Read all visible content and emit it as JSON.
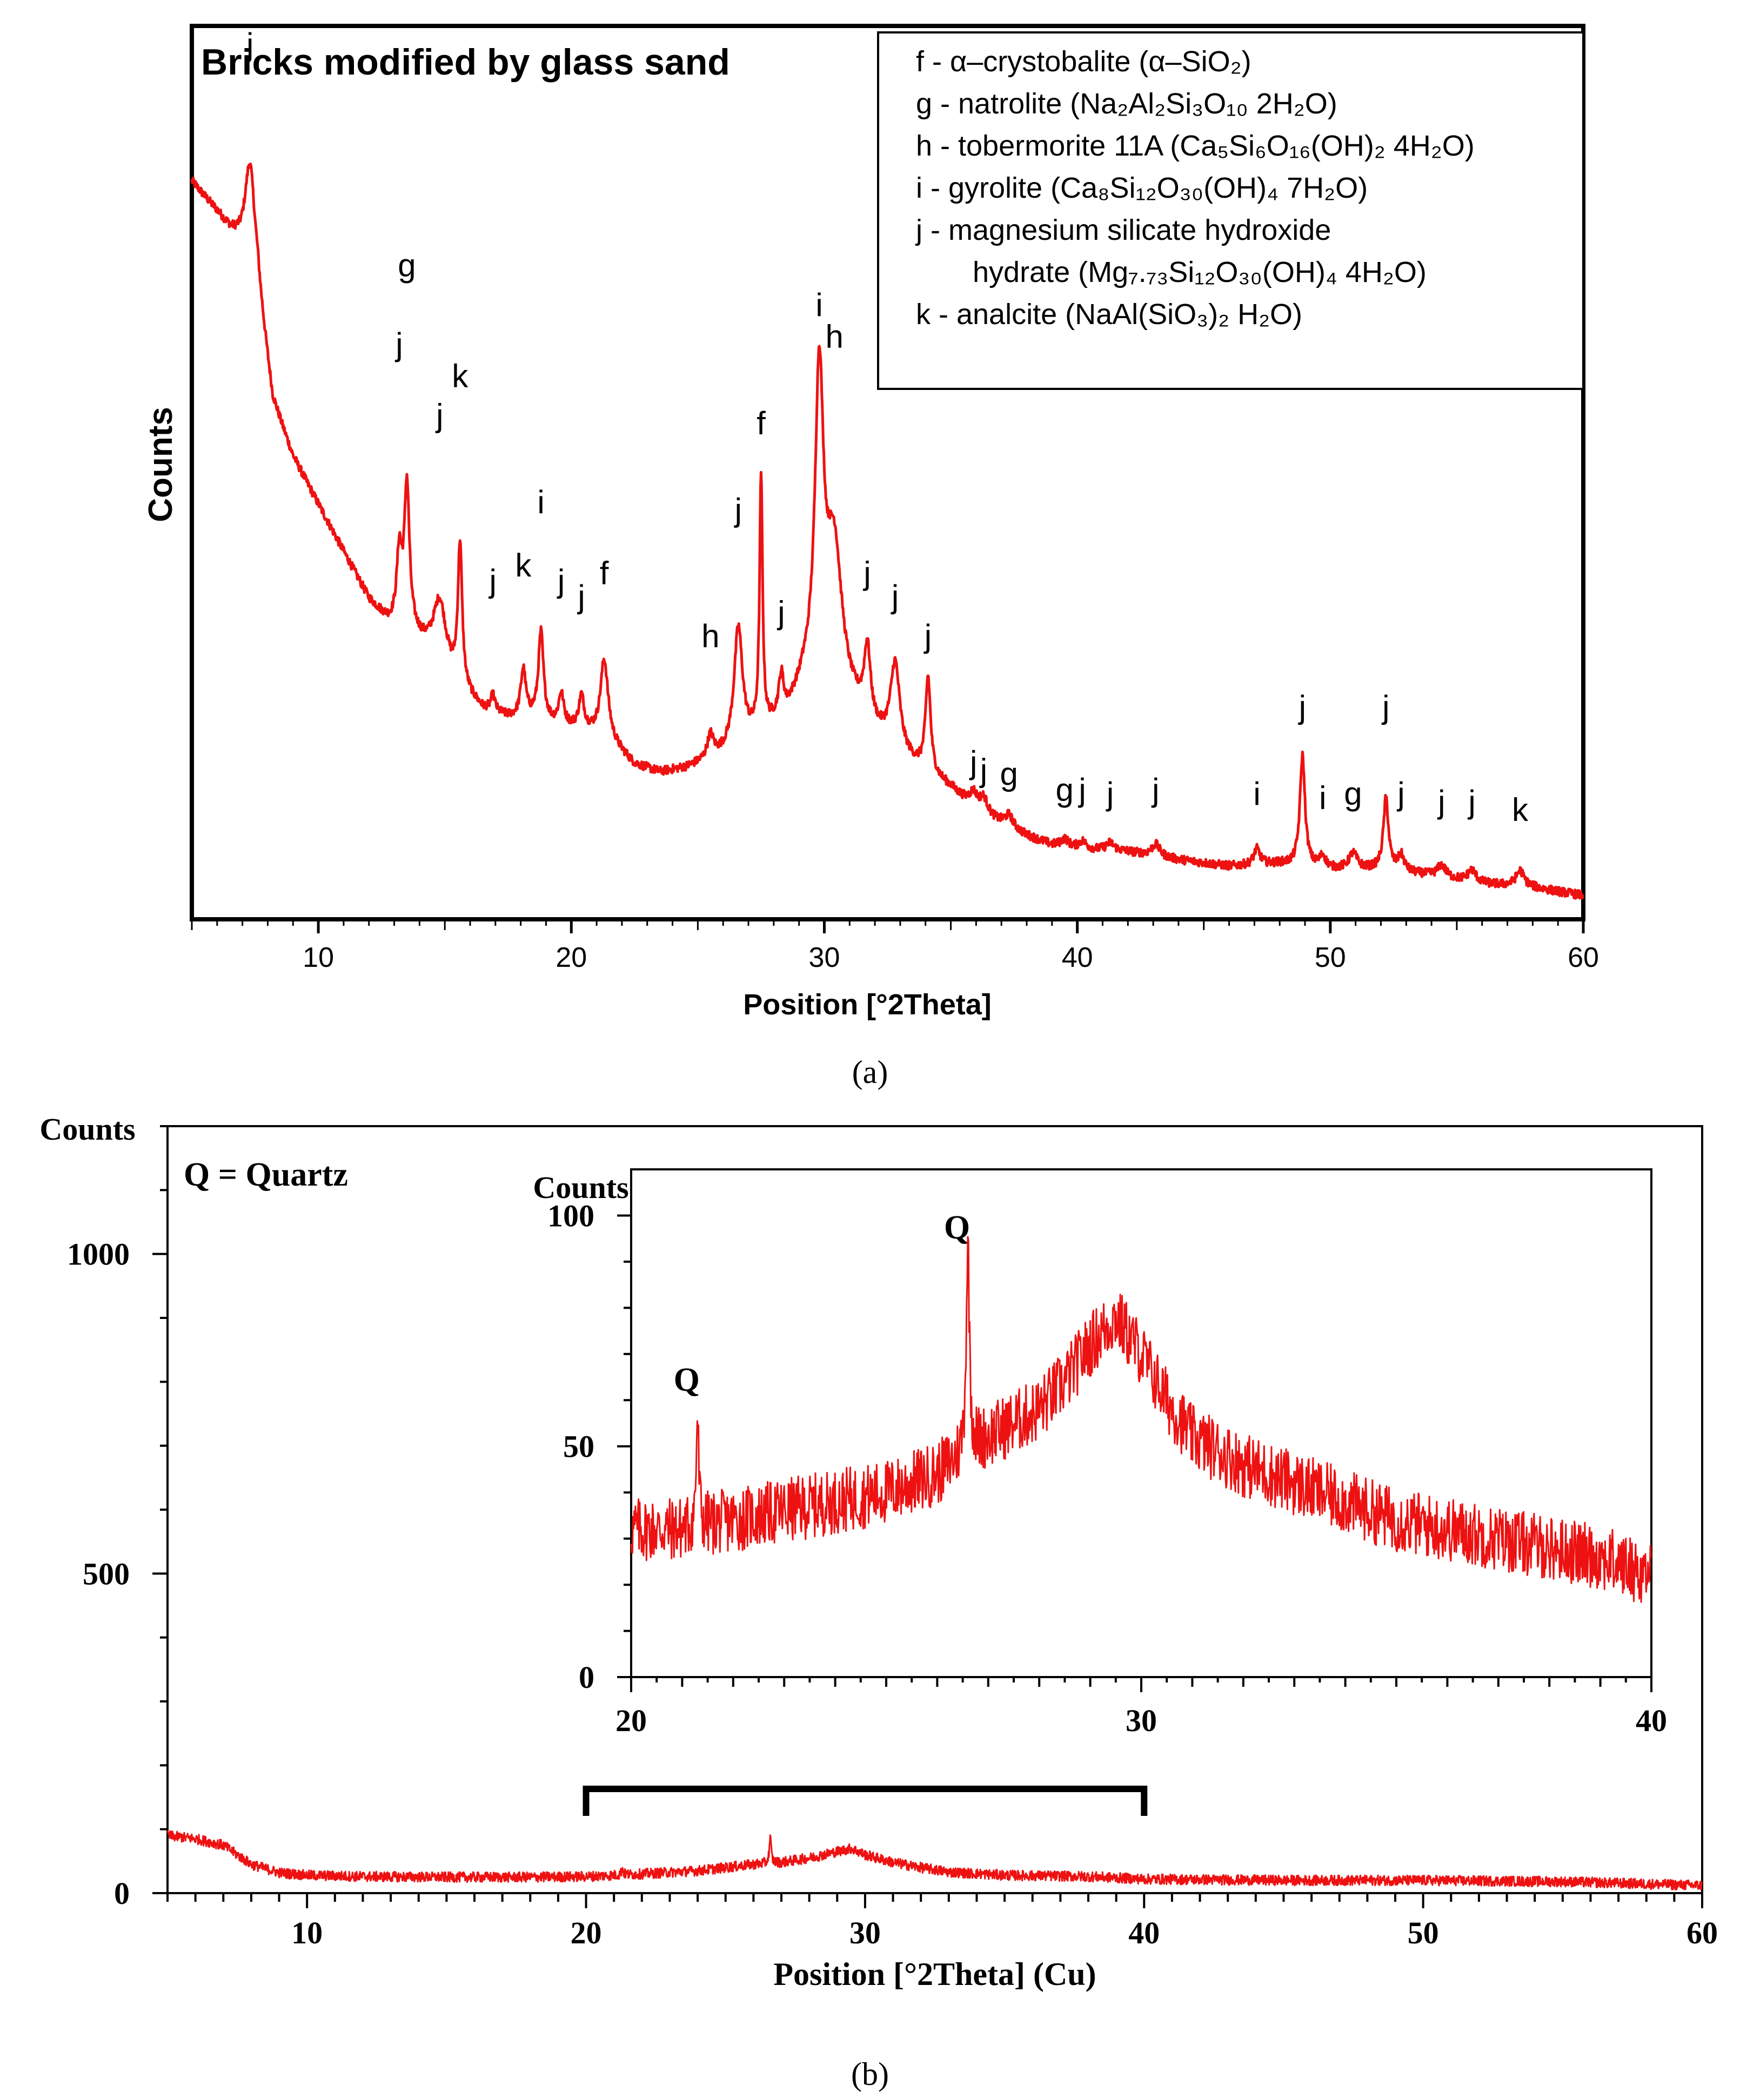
{
  "colors": {
    "trace": "#ee1111",
    "axis": "#000000",
    "background": "#ffffff"
  },
  "figure": {
    "caption_a": "(a)",
    "caption_b": "(b)"
  },
  "chart_data": [
    {
      "id": "a",
      "type": "line",
      "title": "Bricks modified by glass sand",
      "xlabel": "Position [°2Theta]",
      "ylabel": "Counts",
      "xlim": [
        5,
        60
      ],
      "ylim": [
        0,
        100
      ],
      "y_units": "relative intensity (no tick labels shown)",
      "x_ticks": [
        10,
        20,
        30,
        40,
        50,
        60
      ],
      "legend": {
        "placement": "top-right",
        "entries": [
          "f - α–crystobalite (α–SiO₂)",
          "g - natrolite (Na₂Al₂Si₃O₁₀ 2H₂O)",
          "h - tobermorite 11A (Ca₅Si₆O₁₆(OH)₂ 4H₂O)",
          "i - gyrolite (Ca₈Si₁₂O₃₀(OH)₄ 7H₂O)",
          "j - magnesium silicate hydroxide",
          "hydrate (Mg₇.₇₃Si₁₂O₃₀(OH)₄ 4H₂O)",
          "k - analcite (NaAl(SiO₃)₂ H₂O)"
        ]
      },
      "background_points": [
        [
          5,
          92
        ],
        [
          6,
          88
        ],
        [
          6.8,
          84
        ],
        [
          7.6,
          78
        ],
        [
          8.2,
          64
        ],
        [
          9,
          57
        ],
        [
          10,
          51
        ],
        [
          11,
          45
        ],
        [
          12,
          39
        ],
        [
          12.8,
          36
        ],
        [
          13.6,
          35
        ],
        [
          14.5,
          32
        ],
        [
          15.5,
          28
        ],
        [
          16.5,
          25
        ],
        [
          17.5,
          24
        ],
        [
          18.5,
          24
        ],
        [
          19.5,
          23
        ],
        [
          20.5,
          22.5
        ],
        [
          21.5,
          21
        ],
        [
          22.5,
          18
        ],
        [
          23.5,
          17
        ],
        [
          24.5,
          17.5
        ],
        [
          25.5,
          18.5
        ],
        [
          26.5,
          20
        ],
        [
          27.5,
          22
        ],
        [
          28.5,
          24
        ],
        [
          29.2,
          28
        ],
        [
          30.2,
          30
        ],
        [
          31,
          26
        ],
        [
          32,
          22
        ],
        [
          33,
          19
        ],
        [
          34,
          17
        ],
        [
          35,
          15
        ],
        [
          36,
          12
        ],
        [
          37,
          10.5
        ],
        [
          38,
          9
        ],
        [
          39,
          7.8
        ],
        [
          40,
          7.3
        ],
        [
          42,
          7
        ],
        [
          44,
          6
        ],
        [
          46,
          5.2
        ],
        [
          48,
          5.5
        ],
        [
          50,
          4.8
        ],
        [
          52,
          4.8
        ],
        [
          54,
          4
        ],
        [
          56,
          3
        ],
        [
          58,
          2.5
        ],
        [
          60,
          1.5
        ]
      ],
      "peaks": [
        {
          "x": 7.3,
          "h": 14,
          "w": 0.25,
          "label": "j",
          "label_y": 108
        },
        {
          "x": 13.2,
          "h": 9,
          "w": 0.12,
          "label": "j",
          "label_y": 70
        },
        {
          "x": 13.5,
          "h": 18,
          "w": 0.12,
          "label": "g",
          "label_y": 80
        },
        {
          "x": 14.8,
          "h": 8,
          "w": 0.3,
          "label": "j",
          "label_y": 61
        },
        {
          "x": 15.6,
          "h": 18,
          "w": 0.1,
          "label": "k",
          "label_y": 66
        },
        {
          "x": 16.9,
          "h": 2,
          "w": 0.1,
          "label": "j",
          "label_y": 40
        },
        {
          "x": 18.1,
          "h": 6,
          "w": 0.12,
          "label": "k",
          "label_y": 42
        },
        {
          "x": 18.8,
          "h": 11,
          "w": 0.12,
          "label": "i",
          "label_y": 50
        },
        {
          "x": 19.6,
          "h": 4,
          "w": 0.12,
          "label": "j",
          "label_y": 40
        },
        {
          "x": 20.4,
          "h": 4,
          "w": 0.12,
          "label": "j",
          "label_y": 38
        },
        {
          "x": 21.3,
          "h": 10,
          "w": 0.18,
          "label": "f",
          "label_y": 41
        },
        {
          "x": 25.5,
          "h": 3,
          "w": 0.15,
          "label": "h",
          "label_y": 33
        },
        {
          "x": 26.6,
          "h": 15,
          "w": 0.2,
          "label": "j",
          "label_y": 49
        },
        {
          "x": 27.5,
          "h": 32,
          "w": 0.07,
          "label": "f",
          "label_y": 60
        },
        {
          "x": 28.3,
          "h": 5,
          "w": 0.12,
          "label": "j",
          "label_y": 36
        },
        {
          "x": 29.8,
          "h": 38,
          "w": 0.2,
          "label": "i",
          "label_y": 75
        },
        {
          "x": 30.4,
          "h": 16,
          "w": 0.35,
          "label": "h",
          "label_y": 71
        },
        {
          "x": 31.7,
          "h": 9,
          "w": 0.15,
          "label": "j",
          "label_y": 41
        },
        {
          "x": 32.8,
          "h": 11,
          "w": 0.22,
          "label": "j",
          "label_y": 38
        },
        {
          "x": 34.1,
          "h": 12,
          "w": 0.12,
          "label": "j",
          "label_y": 33
        },
        {
          "x": 35.9,
          "h": 2,
          "w": 0.2,
          "label": "j",
          "label_y": 17
        },
        {
          "x": 36.3,
          "h": 2,
          "w": 0.2,
          "label": "j",
          "label_y": 16
        },
        {
          "x": 37.3,
          "h": 1.5,
          "w": 0.2,
          "label": "g",
          "label_y": 15.5
        },
        {
          "x": 39.5,
          "h": 1,
          "w": 0.2,
          "label": "g",
          "label_y": 13.5
        },
        {
          "x": 40.2,
          "h": 1,
          "w": 0.2,
          "label": "j",
          "label_y": 13.5
        },
        {
          "x": 41.3,
          "h": 1,
          "w": 0.2,
          "label": "j",
          "label_y": 13
        },
        {
          "x": 43.1,
          "h": 1.5,
          "w": 0.2,
          "label": "j",
          "label_y": 13.5
        },
        {
          "x": 47.1,
          "h": 2,
          "w": 0.15,
          "label": "i",
          "label_y": 13
        },
        {
          "x": 48.9,
          "h": 14,
          "w": 0.12,
          "label": "j",
          "label_y": 24
        },
        {
          "x": 49.7,
          "h": 1.5,
          "w": 0.15,
          "label": "i",
          "label_y": 12.5
        },
        {
          "x": 50.9,
          "h": 2,
          "w": 0.2,
          "label": "g",
          "label_y": 13
        },
        {
          "x": 52.2,
          "h": 9,
          "w": 0.12,
          "label": "j",
          "label_y": 24
        },
        {
          "x": 52.8,
          "h": 2,
          "w": 0.15,
          "label": "j",
          "label_y": 13
        },
        {
          "x": 54.4,
          "h": 1.5,
          "w": 0.2,
          "label": "j",
          "label_y": 12
        },
        {
          "x": 55.6,
          "h": 1.5,
          "w": 0.2,
          "label": "j",
          "label_y": 12
        },
        {
          "x": 57.5,
          "h": 2,
          "w": 0.2,
          "label": "k",
          "label_y": 11
        }
      ]
    },
    {
      "id": "b",
      "type": "line",
      "title": "",
      "annotation": "Q = Quartz",
      "xlabel": "Position [°2Theta] (Cu)",
      "ylabel": "Counts",
      "xlim": [
        5,
        60
      ],
      "ylim": [
        0,
        1200
      ],
      "x_ticks": [
        10,
        20,
        30,
        40,
        50,
        60
      ],
      "y_ticks": [
        0,
        500,
        1000
      ],
      "zoom_bracket": [
        20,
        40
      ],
      "background_points": [
        [
          5,
          90
        ],
        [
          6,
          85
        ],
        [
          7,
          75
        ],
        [
          8,
          45
        ],
        [
          9,
          32
        ],
        [
          10,
          28
        ],
        [
          12,
          26
        ],
        [
          15,
          25
        ],
        [
          18,
          25
        ],
        [
          20,
          26
        ],
        [
          22,
          30
        ],
        [
          24,
          35
        ],
        [
          25,
          40
        ],
        [
          26,
          45
        ],
        [
          27,
          48
        ],
        [
          28,
          55
        ],
        [
          29,
          65
        ],
        [
          29.5,
          70
        ],
        [
          30,
          60
        ],
        [
          31,
          48
        ],
        [
          32,
          40
        ],
        [
          33,
          33
        ],
        [
          35,
          28
        ],
        [
          38,
          26
        ],
        [
          40,
          22
        ],
        [
          45,
          20
        ],
        [
          50,
          20
        ],
        [
          55,
          18
        ],
        [
          60,
          12
        ]
      ],
      "noise_amplitude": 8,
      "peaks": [
        {
          "x": 26.6,
          "h": 40,
          "w": 0.04
        },
        {
          "x": 21.3,
          "h": 10,
          "w": 0.04
        }
      ],
      "inset": {
        "ylabel": "Counts",
        "xlim": [
          20,
          40
        ],
        "ylim": [
          0,
          110
        ],
        "x_ticks": [
          20,
          30,
          40
        ],
        "y_ticks": [
          0,
          50,
          100
        ],
        "background_points": [
          [
            20,
            32
          ],
          [
            21,
            32
          ],
          [
            22,
            34
          ],
          [
            23,
            36
          ],
          [
            24,
            38
          ],
          [
            25,
            40
          ],
          [
            26,
            44
          ],
          [
            26.5,
            48
          ],
          [
            27,
            52
          ],
          [
            28,
            58
          ],
          [
            28.5,
            64
          ],
          [
            29,
            72
          ],
          [
            29.5,
            78
          ],
          [
            30,
            70
          ],
          [
            30.5,
            60
          ],
          [
            31,
            52
          ],
          [
            32,
            46
          ],
          [
            33,
            42
          ],
          [
            34,
            38
          ],
          [
            35,
            34
          ],
          [
            36,
            32
          ],
          [
            37,
            30
          ],
          [
            38,
            28
          ],
          [
            39,
            26
          ],
          [
            40,
            22
          ]
        ],
        "noise_amplitude": 7,
        "peaks": [
          {
            "x": 21.3,
            "h": 24,
            "w": 0.03,
            "label": "Q",
            "label_y": 62
          },
          {
            "x": 26.6,
            "h": 44,
            "w": 0.04,
            "label": "Q",
            "label_y": 95
          }
        ]
      }
    }
  ]
}
